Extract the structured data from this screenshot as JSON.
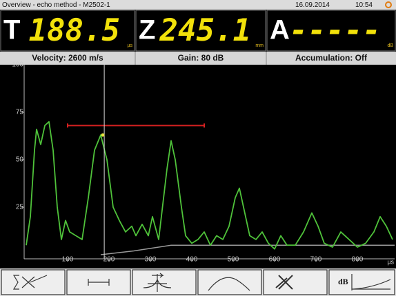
{
  "header": {
    "title": "Overview - echo method - M2502-1",
    "date": "16.09.2014",
    "time": "10:54"
  },
  "readouts": [
    {
      "label": "T",
      "value": "188.5",
      "unit": "µs"
    },
    {
      "label": "Z",
      "value": "245.1",
      "unit": "mm"
    },
    {
      "label": "A",
      "value": "-----",
      "unit": "dB"
    }
  ],
  "status": [
    "Velocity: 2600 m/s",
    "Gain: 80 dB",
    "Accumulation: Off"
  ],
  "chart_data": {
    "type": "line",
    "x": [
      0,
      10,
      20,
      25,
      35,
      45,
      55,
      65,
      75,
      85,
      95,
      105,
      120,
      135,
      150,
      165,
      180,
      195,
      210,
      225,
      240,
      255,
      265,
      280,
      295,
      305,
      320,
      340,
      350,
      360,
      375,
      385,
      400,
      415,
      430,
      445,
      460,
      475,
      490,
      505,
      515,
      525,
      540,
      555,
      570,
      585,
      600,
      615,
      630,
      650,
      670,
      690,
      705,
      720,
      740,
      760,
      780,
      800,
      820,
      840,
      855,
      870,
      885
    ],
    "series": [
      {
        "color": "#4fc23a",
        "values": [
          5,
          20,
          55,
          66,
          58,
          68,
          70,
          55,
          25,
          8,
          18,
          12,
          10,
          8,
          30,
          55,
          63,
          50,
          25,
          18,
          12,
          15,
          10,
          16,
          10,
          20,
          8,
          45,
          60,
          50,
          25,
          10,
          6,
          8,
          12,
          5,
          10,
          8,
          15,
          30,
          35,
          25,
          10,
          8,
          12,
          6,
          3,
          10,
          5,
          5,
          12,
          22,
          15,
          6,
          4,
          12,
          8,
          4,
          6,
          12,
          20,
          15,
          8
        ]
      }
    ],
    "xlim": [
      0,
      890
    ],
    "ylim": [
      0,
      100
    ],
    "xticks": [
      100,
      200,
      300,
      400,
      500,
      600,
      700,
      800
    ],
    "yticks": [
      25,
      50,
      75,
      100
    ],
    "x_unit": "µs",
    "grid": false,
    "gate": {
      "start": 100,
      "end": 430,
      "level": 68,
      "color": "#d42020"
    },
    "cursor": 188.5,
    "peak": {
      "x": 185,
      "y": 63,
      "color": "#e8e040"
    },
    "dac": {
      "x": [
        180,
        260,
        350,
        890
      ],
      "y": [
        0,
        2,
        5,
        5
      ],
      "color": "#9a9a9a"
    }
  },
  "toolbar": {
    "db_label": "dB"
  }
}
